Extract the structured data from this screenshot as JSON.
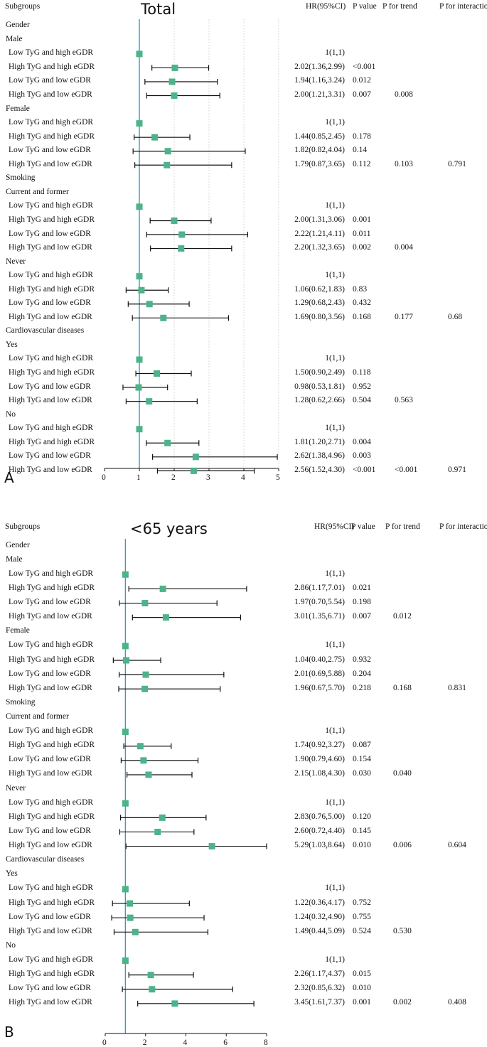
{
  "panels": [
    {
      "id": "A",
      "letter": "A",
      "title": "Total",
      "headers": {
        "subgroups": "Subgroups",
        "hr": "HR(95%CI)",
        "p": "P value",
        "trend": "P for trend",
        "interaction": "P for interaction"
      },
      "chart_data": {
        "type": "forest",
        "xlim": [
          0,
          5
        ],
        "xticks": [
          0,
          1,
          2,
          3,
          4,
          5
        ],
        "reference_line": 1,
        "grid": "vertical dotted",
        "rows": [
          {
            "label": "Gender",
            "level": 0
          },
          {
            "label": "Male",
            "level": 0
          },
          {
            "label": "Low TyG and high eGDR",
            "level": 1,
            "hr": 1,
            "lo": 1,
            "hi": 1,
            "hr_text": "1(1,1)",
            "p": "",
            "trend": "",
            "inter": ""
          },
          {
            "label": "High TyG and high eGDR",
            "level": 1,
            "hr": 2.02,
            "lo": 1.36,
            "hi": 2.99,
            "hr_text": "2.02(1.36,2.99)",
            "p": "<0.001",
            "trend": "",
            "inter": ""
          },
          {
            "label": "Low TyG and low eGDR",
            "level": 1,
            "hr": 1.94,
            "lo": 1.16,
            "hi": 3.24,
            "hr_text": "1.94(1.16,3.24)",
            "p": "0.012",
            "trend": "",
            "inter": ""
          },
          {
            "label": "High TyG and low eGDR",
            "level": 1,
            "hr": 2.0,
            "lo": 1.21,
            "hi": 3.31,
            "hr_text": "2.00(1.21,3.31)",
            "p": "0.007",
            "trend": "0.008",
            "inter": ""
          },
          {
            "label": "Female",
            "level": 0
          },
          {
            "label": "Low TyG and high eGDR",
            "level": 1,
            "hr": 1,
            "lo": 1,
            "hi": 1,
            "hr_text": "1(1,1)",
            "p": "",
            "trend": "",
            "inter": ""
          },
          {
            "label": "High TyG and high eGDR",
            "level": 1,
            "hr": 1.44,
            "lo": 0.85,
            "hi": 2.45,
            "hr_text": "1.44(0.85,2.45)",
            "p": "0.178",
            "trend": "",
            "inter": ""
          },
          {
            "label": "Low TyG and low eGDR",
            "level": 1,
            "hr": 1.82,
            "lo": 0.82,
            "hi": 4.04,
            "hr_text": "1.82(0.82,4.04)",
            "p": "0.14",
            "trend": "",
            "inter": ""
          },
          {
            "label": "High TyG and low eGDR",
            "level": 1,
            "hr": 1.79,
            "lo": 0.87,
            "hi": 3.65,
            "hr_text": "1.79(0.87,3.65)",
            "p": "0.112",
            "trend": "0.103",
            "inter": "0.791"
          },
          {
            "label": "Smoking",
            "level": 0
          },
          {
            "label": "Current and former",
            "level": 0
          },
          {
            "label": "Low TyG and high eGDR",
            "level": 1,
            "hr": 1,
            "lo": 1,
            "hi": 1,
            "hr_text": "1(1,1)",
            "p": "",
            "trend": "",
            "inter": ""
          },
          {
            "label": "High TyG and high eGDR",
            "level": 1,
            "hr": 2.0,
            "lo": 1.31,
            "hi": 3.06,
            "hr_text": "2.00(1.31,3.06)",
            "p": "0.001",
            "trend": "",
            "inter": ""
          },
          {
            "label": "Low TyG and low eGDR",
            "level": 1,
            "hr": 2.22,
            "lo": 1.21,
            "hi": 4.11,
            "hr_text": "2.22(1.21,4.11)",
            "p": "0.011",
            "trend": "",
            "inter": ""
          },
          {
            "label": "High TyG and low eGDR",
            "level": 1,
            "hr": 2.2,
            "lo": 1.32,
            "hi": 3.65,
            "hr_text": "2.20(1.32,3.65)",
            "p": "0.002",
            "trend": "0.004",
            "inter": ""
          },
          {
            "label": "Never",
            "level": 0
          },
          {
            "label": "Low TyG and high eGDR",
            "level": 1,
            "hr": 1,
            "lo": 1,
            "hi": 1,
            "hr_text": "1(1,1)",
            "p": "",
            "trend": "",
            "inter": ""
          },
          {
            "label": "High TyG and high eGDR",
            "level": 1,
            "hr": 1.06,
            "lo": 0.62,
            "hi": 1.83,
            "hr_text": "1.06(0.62,1.83)",
            "p": "0.83",
            "trend": "",
            "inter": ""
          },
          {
            "label": "Low TyG and low eGDR",
            "level": 1,
            "hr": 1.29,
            "lo": 0.68,
            "hi": 2.43,
            "hr_text": "1.29(0.68,2.43)",
            "p": "0.432",
            "trend": "",
            "inter": ""
          },
          {
            "label": "High TyG and low eGDR",
            "level": 1,
            "hr": 1.69,
            "lo": 0.8,
            "hi": 3.56,
            "hr_text": "1.69(0.80,3.56)",
            "p": "0.168",
            "trend": "0.177",
            "inter": "0.68"
          },
          {
            "label": "Cardiovascular diseases",
            "level": 0
          },
          {
            "label": "Yes",
            "level": 0
          },
          {
            "label": "Low TyG and high eGDR",
            "level": 1,
            "hr": 1,
            "lo": 1,
            "hi": 1,
            "hr_text": "1(1,1)",
            "p": "",
            "trend": "",
            "inter": ""
          },
          {
            "label": "High TyG and high eGDR",
            "level": 1,
            "hr": 1.5,
            "lo": 0.9,
            "hi": 2.49,
            "hr_text": "1.50(0.90,2.49)",
            "p": "0.118",
            "trend": "",
            "inter": ""
          },
          {
            "label": "Low TyG and low eGDR",
            "level": 1,
            "hr": 0.98,
            "lo": 0.53,
            "hi": 1.81,
            "hr_text": "0.98(0.53,1.81)",
            "p": "0.952",
            "trend": "",
            "inter": ""
          },
          {
            "label": "High TyG and low eGDR",
            "level": 1,
            "hr": 1.28,
            "lo": 0.62,
            "hi": 2.66,
            "hr_text": "1.28(0.62,2.66)",
            "p": "0.504",
            "trend": "0.563",
            "inter": ""
          },
          {
            "label": "No",
            "level": 0
          },
          {
            "label": "Low TyG and high eGDR",
            "level": 1,
            "hr": 1,
            "lo": 1,
            "hi": 1,
            "hr_text": "1(1,1)",
            "p": "",
            "trend": "",
            "inter": ""
          },
          {
            "label": "High TyG and high eGDR",
            "level": 1,
            "hr": 1.81,
            "lo": 1.2,
            "hi": 2.71,
            "hr_text": "1.81(1.20,2.71)",
            "p": "0.004",
            "trend": "",
            "inter": ""
          },
          {
            "label": "Low TyG and low eGDR",
            "level": 1,
            "hr": 2.62,
            "lo": 1.38,
            "hi": 4.96,
            "hr_text": "2.62(1.38,4.96)",
            "p": "0.003",
            "trend": "",
            "inter": ""
          },
          {
            "label": "High TyG and low eGDR",
            "level": 1,
            "hr": 2.56,
            "lo": 1.52,
            "hi": 4.3,
            "hr_text": "2.56(1.52,4.30)",
            "p": "<0.001",
            "trend": "<0.001",
            "inter": "0.971"
          }
        ]
      }
    },
    {
      "id": "B",
      "letter": "B",
      "title": "<65 years",
      "headers": {
        "subgroups": "Subgroups",
        "hr": "HR(95%CI)",
        "p": "P value",
        "trend": "P for trend",
        "interaction": "P for interaction"
      },
      "chart_data": {
        "type": "forest",
        "xlim": [
          0,
          8
        ],
        "xticks": [
          0,
          2,
          4,
          6,
          8
        ],
        "reference_line": 1,
        "grid": "none",
        "rows": [
          {
            "label": "Gender",
            "level": 0
          },
          {
            "label": "Male",
            "level": 0
          },
          {
            "label": "Low TyG and high eGDR",
            "level": 1,
            "hr": 1,
            "lo": 1,
            "hi": 1,
            "hr_text": "1(1,1)",
            "p": "",
            "trend": "",
            "inter": ""
          },
          {
            "label": "High TyG and high eGDR",
            "level": 1,
            "hr": 2.86,
            "lo": 1.17,
            "hi": 7.01,
            "hr_text": "2.86(1.17,7.01)",
            "p": "0.021",
            "trend": "",
            "inter": ""
          },
          {
            "label": "Low TyG and low eGDR",
            "level": 1,
            "hr": 1.97,
            "lo": 0.7,
            "hi": 5.54,
            "hr_text": "1.97(0.70,5.54)",
            "p": "0.198",
            "trend": "",
            "inter": ""
          },
          {
            "label": "High TyG and low eGDR",
            "level": 1,
            "hr": 3.01,
            "lo": 1.35,
            "hi": 6.71,
            "hr_text": "3.01(1.35,6.71)",
            "p": "0.007",
            "trend": "0.012",
            "inter": ""
          },
          {
            "label": "Female",
            "level": 0
          },
          {
            "label": "Low TyG and high eGDR",
            "level": 1,
            "hr": 1,
            "lo": 1,
            "hi": 1,
            "hr_text": "1(1,1)",
            "p": "",
            "trend": "",
            "inter": ""
          },
          {
            "label": "High TyG and high eGDR",
            "level": 1,
            "hr": 1.04,
            "lo": 0.4,
            "hi": 2.75,
            "hr_text": "1.04(0.40,2.75)",
            "p": "0.932",
            "trend": "",
            "inter": ""
          },
          {
            "label": "Low TyG and low eGDR",
            "level": 1,
            "hr": 2.01,
            "lo": 0.69,
            "hi": 5.88,
            "hr_text": "2.01(0.69,5.88)",
            "p": "0.204",
            "trend": "",
            "inter": ""
          },
          {
            "label": "High TyG and low eGDR",
            "level": 1,
            "hr": 1.96,
            "lo": 0.67,
            "hi": 5.7,
            "hr_text": "1.96(0.67,5.70)",
            "p": "0.218",
            "trend": "0.168",
            "inter": "0.831"
          },
          {
            "label": "Smoking",
            "level": 0
          },
          {
            "label": "Current and former",
            "level": 0
          },
          {
            "label": "Low TyG and high eGDR",
            "level": 1,
            "hr": 1,
            "lo": 1,
            "hi": 1,
            "hr_text": "1(1,1)",
            "p": "",
            "trend": "",
            "inter": ""
          },
          {
            "label": "High TyG and high eGDR",
            "level": 1,
            "hr": 1.74,
            "lo": 0.92,
            "hi": 3.27,
            "hr_text": "1.74(0.92,3.27)",
            "p": "0.087",
            "trend": "",
            "inter": ""
          },
          {
            "label": "Low TyG and low eGDR",
            "level": 1,
            "hr": 1.9,
            "lo": 0.79,
            "hi": 4.6,
            "hr_text": "1.90(0.79,4.60)",
            "p": "0.154",
            "trend": "",
            "inter": ""
          },
          {
            "label": "High TyG and low eGDR",
            "level": 1,
            "hr": 2.15,
            "lo": 1.08,
            "hi": 4.3,
            "hr_text": "2.15(1.08,4.30)",
            "p": "0.030",
            "trend": "0.040",
            "inter": ""
          },
          {
            "label": "Never",
            "level": 0
          },
          {
            "label": "Low TyG and high eGDR",
            "level": 1,
            "hr": 1,
            "lo": 1,
            "hi": 1,
            "hr_text": "1(1,1)",
            "p": "",
            "trend": "",
            "inter": ""
          },
          {
            "label": "High TyG and high eGDR",
            "level": 1,
            "hr": 2.83,
            "lo": 0.76,
            "hi": 5.0,
            "hr_text": "2.83(0.76,5.00)",
            "p": "0.120",
            "trend": "",
            "inter": ""
          },
          {
            "label": "Low TyG and low eGDR",
            "level": 1,
            "hr": 2.6,
            "lo": 0.72,
            "hi": 4.4,
            "hr_text": "2.60(0.72,4.40)",
            "p": "0.145",
            "trend": "",
            "inter": ""
          },
          {
            "label": "High TyG and low eGDR",
            "level": 1,
            "hr": 5.29,
            "lo": 1.03,
            "hi": 8.64,
            "hr_text": "5.29(1.03,8.64)",
            "p": "0.010",
            "trend": "0.006",
            "inter": "0.604"
          },
          {
            "label": "Cardiovascular diseases",
            "level": 0
          },
          {
            "label": "Yes",
            "level": 0
          },
          {
            "label": "Low TyG and high eGDR",
            "level": 1,
            "hr": 1,
            "lo": 1,
            "hi": 1,
            "hr_text": "1(1,1)",
            "p": "",
            "trend": "",
            "inter": ""
          },
          {
            "label": "High TyG and high eGDR",
            "level": 1,
            "hr": 1.22,
            "lo": 0.36,
            "hi": 4.17,
            "hr_text": "1.22(0.36,4.17)",
            "p": "0.752",
            "trend": "",
            "inter": ""
          },
          {
            "label": "Low TyG and low eGDR",
            "level": 1,
            "hr": 1.24,
            "lo": 0.32,
            "hi": 4.9,
            "hr_text": "1.24(0.32,4.90)",
            "p": "0.755",
            "trend": "",
            "inter": ""
          },
          {
            "label": "High TyG and low eGDR",
            "level": 1,
            "hr": 1.49,
            "lo": 0.44,
            "hi": 5.09,
            "hr_text": "1.49(0.44,5.09)",
            "p": "0.524",
            "trend": "0.530",
            "inter": ""
          },
          {
            "label": "No",
            "level": 0
          },
          {
            "label": "Low TyG and high eGDR",
            "level": 1,
            "hr": 1,
            "lo": 1,
            "hi": 1,
            "hr_text": "1(1,1)",
            "p": "",
            "trend": "",
            "inter": ""
          },
          {
            "label": "High TyG and high eGDR",
            "level": 1,
            "hr": 2.26,
            "lo": 1.17,
            "hi": 4.37,
            "hr_text": "2.26(1.17,4.37)",
            "p": "0.015",
            "trend": "",
            "inter": ""
          },
          {
            "label": "Low TyG and low eGDR",
            "level": 1,
            "hr": 2.32,
            "lo": 0.85,
            "hi": 6.32,
            "hr_text": "2.32(0.85,6.32)",
            "p": "0.010",
            "trend": "",
            "inter": ""
          },
          {
            "label": "High TyG and low eGDR",
            "level": 1,
            "hr": 3.45,
            "lo": 1.61,
            "hi": 7.37,
            "hr_text": "3.45(1.61,7.37)",
            "p": "0.001",
            "trend": "0.002",
            "inter": "0.408"
          }
        ]
      }
    }
  ],
  "colors": {
    "marker": "#4db38a",
    "reference_line": "#2b9fc9",
    "ci_line": "#111111",
    "grid": "#d8d8d8"
  }
}
